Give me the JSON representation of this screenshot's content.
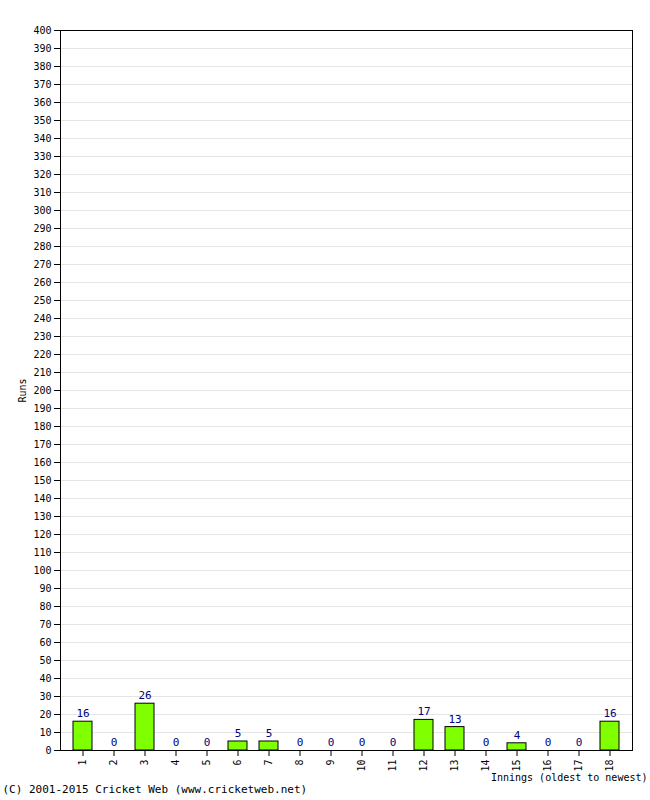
{
  "chart_data": {
    "type": "bar",
    "categories": [
      "1",
      "2",
      "3",
      "4",
      "5",
      "6",
      "7",
      "8",
      "9",
      "10",
      "11",
      "12",
      "13",
      "14",
      "15",
      "16",
      "17",
      "18"
    ],
    "values": [
      16,
      0,
      26,
      0,
      0,
      5,
      5,
      0,
      0,
      0,
      0,
      17,
      13,
      0,
      4,
      0,
      0,
      16
    ],
    "color": "#80ff00",
    "x_label": "Innings (oldest to newest)",
    "y_label": "Runs",
    "ylim": [
      0,
      400
    ],
    "yticks": [
      0,
      10,
      20,
      30,
      40,
      50,
      60,
      70,
      80,
      90,
      100,
      110,
      120,
      130,
      140,
      150,
      160,
      170,
      180,
      190,
      200,
      210,
      220,
      230,
      240,
      250,
      260,
      270,
      280,
      290,
      300,
      310,
      320,
      330,
      340,
      350,
      360,
      370,
      380,
      390,
      400
    ],
    "grid": true,
    "data_labels": true,
    "annotations": [
      "(C) 2001-2015 Cricket Web (www.cricketweb.net)"
    ]
  }
}
